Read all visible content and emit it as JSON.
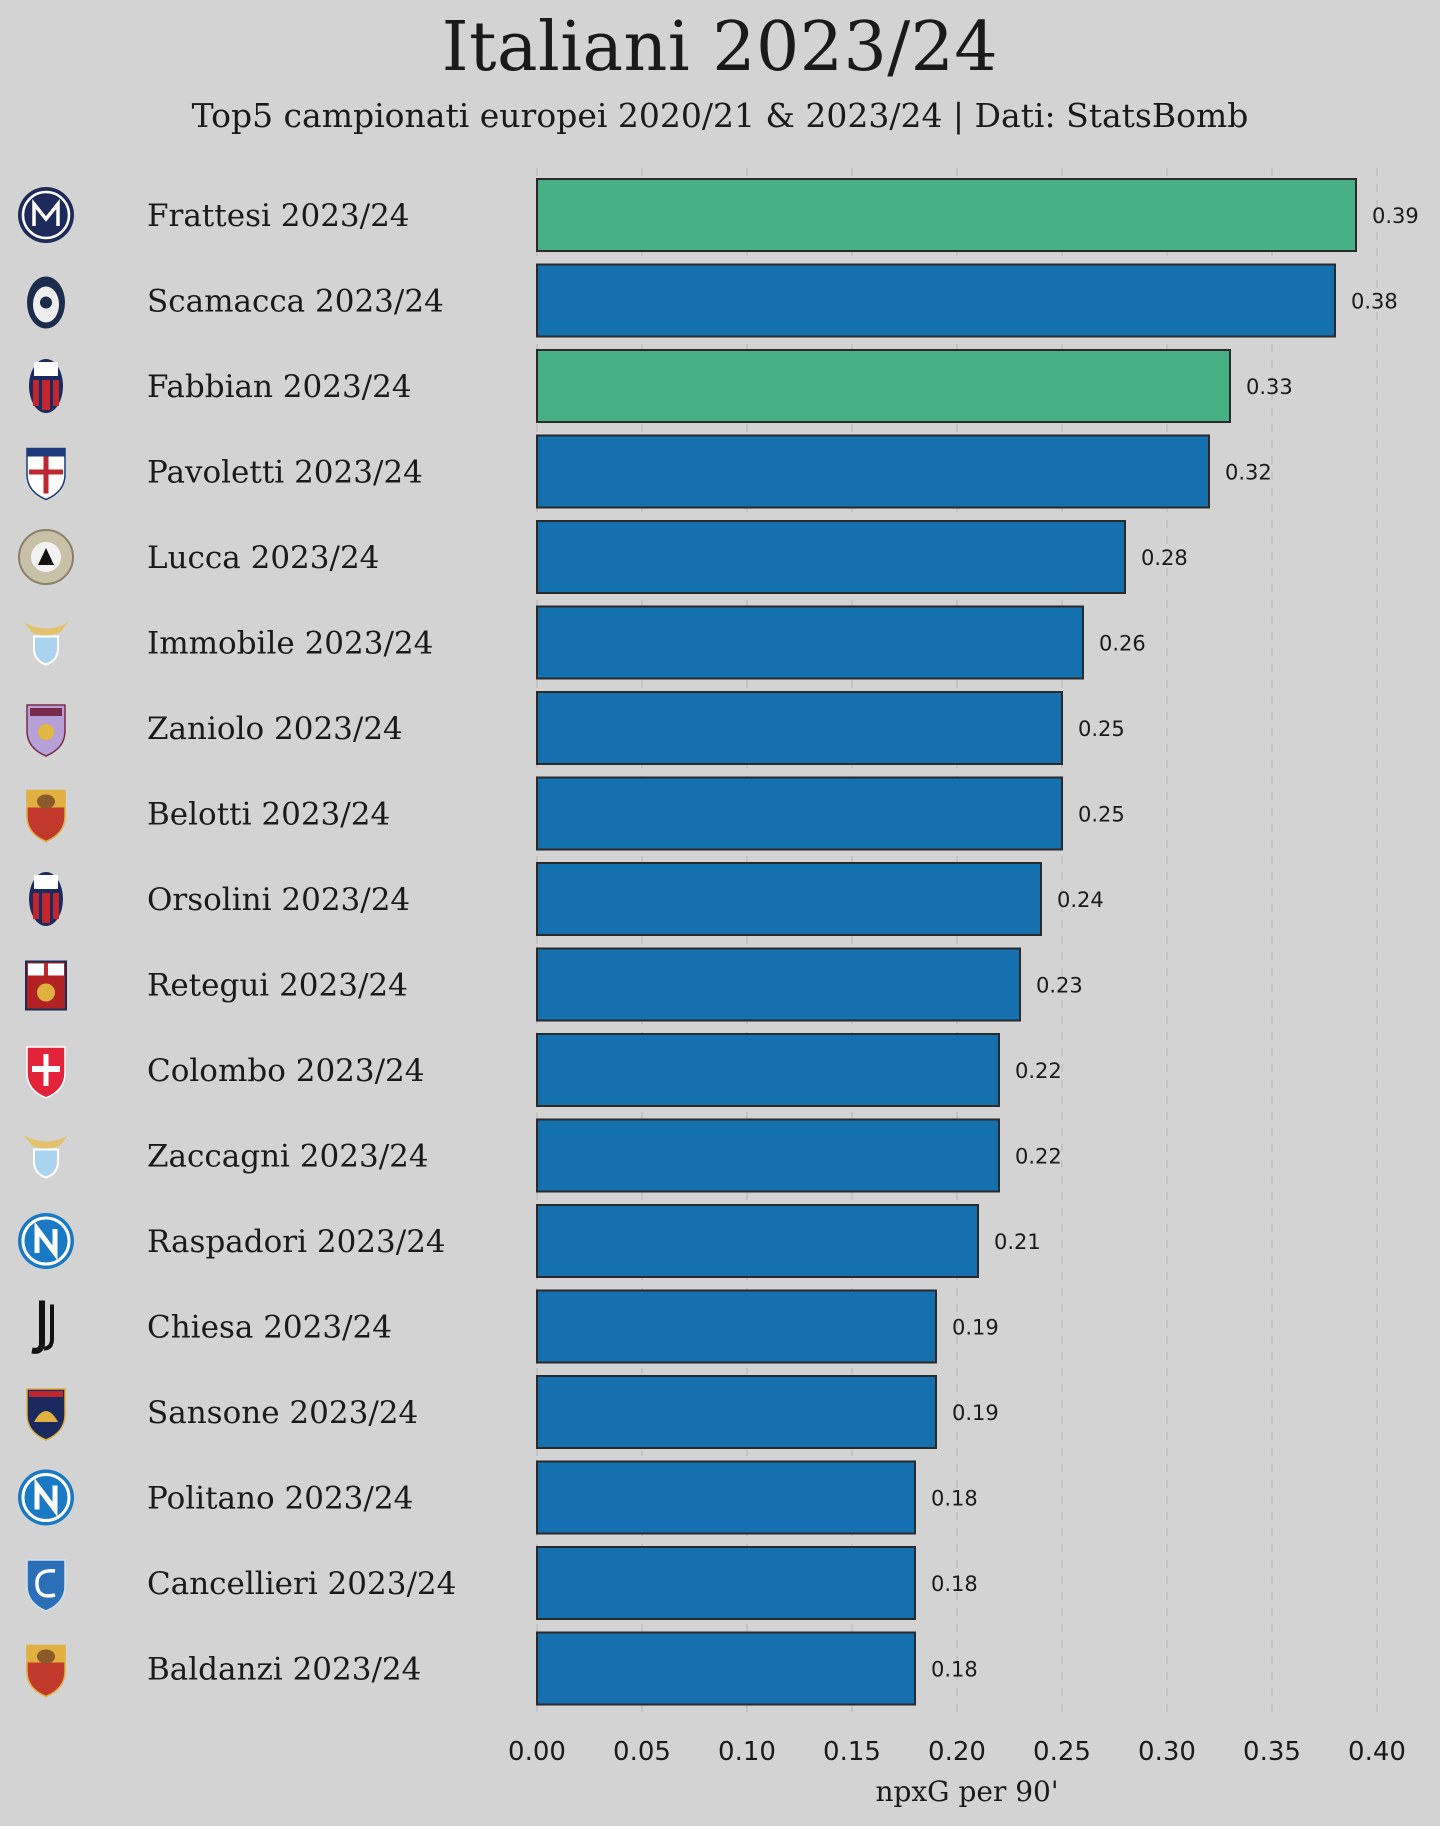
{
  "chart_data": {
    "type": "bar",
    "orientation": "horizontal",
    "title": "Italiani 2023/24",
    "subtitle": "Top5 campionati europei 2020/21 & 2023/24 | Dati: StatsBomb",
    "xlabel": "npxG per 90'",
    "ylabel": "",
    "xlim": [
      0,
      0.4
    ],
    "xticks": [
      "0.00",
      "0.05",
      "0.10",
      "0.15",
      "0.20",
      "0.25",
      "0.30",
      "0.35",
      "0.40"
    ],
    "grid": "vertical dashed",
    "colors": {
      "default": "#1570b0",
      "highlight": "#48b085",
      "edge": "#2a2a2a"
    },
    "bars": [
      {
        "label": "Frattesi 2023/24",
        "value": 0.39,
        "value_label": "0.39",
        "highlight": true,
        "club": "Inter",
        "badge": "inter-badge-icon"
      },
      {
        "label": "Scamacca 2023/24",
        "value": 0.38,
        "value_label": "0.38",
        "highlight": false,
        "club": "Atalanta",
        "badge": "atalanta-badge-icon"
      },
      {
        "label": "Fabbian 2023/24",
        "value": 0.33,
        "value_label": "0.33",
        "highlight": true,
        "club": "Bologna",
        "badge": "bologna-badge-icon"
      },
      {
        "label": "Pavoletti 2023/24",
        "value": 0.32,
        "value_label": "0.32",
        "highlight": false,
        "club": "Cagliari",
        "badge": "cagliari-badge-icon"
      },
      {
        "label": "Lucca 2023/24",
        "value": 0.28,
        "value_label": "0.28",
        "highlight": false,
        "club": "Udinese",
        "badge": "udinese-badge-icon"
      },
      {
        "label": "Immobile 2023/24",
        "value": 0.26,
        "value_label": "0.26",
        "highlight": false,
        "club": "Lazio",
        "badge": "lazio-badge-icon"
      },
      {
        "label": "Zaniolo 2023/24",
        "value": 0.25,
        "value_label": "0.25",
        "highlight": false,
        "club": "Aston Villa",
        "badge": "aston-villa-badge-icon"
      },
      {
        "label": "Belotti 2023/24",
        "value": 0.25,
        "value_label": "0.25",
        "highlight": false,
        "club": "Roma",
        "badge": "roma-badge-icon"
      },
      {
        "label": "Orsolini 2023/24",
        "value": 0.24,
        "value_label": "0.24",
        "highlight": false,
        "club": "Bologna",
        "badge": "bologna-badge-icon"
      },
      {
        "label": "Retegui 2023/24",
        "value": 0.23,
        "value_label": "0.23",
        "highlight": false,
        "club": "Genoa",
        "badge": "genoa-badge-icon"
      },
      {
        "label": "Colombo 2023/24",
        "value": 0.22,
        "value_label": "0.22",
        "highlight": false,
        "club": "Monza",
        "badge": "monza-badge-icon"
      },
      {
        "label": "Zaccagni 2023/24",
        "value": 0.22,
        "value_label": "0.22",
        "highlight": false,
        "club": "Lazio",
        "badge": "lazio-badge-icon"
      },
      {
        "label": "Raspadori 2023/24",
        "value": 0.21,
        "value_label": "0.21",
        "highlight": false,
        "club": "Napoli",
        "badge": "napoli-badge-icon"
      },
      {
        "label": "Chiesa 2023/24",
        "value": 0.19,
        "value_label": "0.19",
        "highlight": false,
        "club": "Juventus",
        "badge": "juventus-badge-icon"
      },
      {
        "label": "Sansone 2023/24",
        "value": 0.19,
        "value_label": "0.19",
        "highlight": false,
        "club": "Lecce",
        "badge": "lecce-badge-icon"
      },
      {
        "label": "Politano 2023/24",
        "value": 0.18,
        "value_label": "0.18",
        "highlight": false,
        "club": "Napoli",
        "badge": "napoli-badge-icon"
      },
      {
        "label": "Cancellieri 2023/24",
        "value": 0.18,
        "value_label": "0.18",
        "highlight": false,
        "club": "Empoli",
        "badge": "empoli-badge-icon"
      },
      {
        "label": "Baldanzi 2023/24",
        "value": 0.18,
        "value_label": "0.18",
        "highlight": false,
        "club": "Roma",
        "badge": "roma-badge-icon"
      }
    ]
  }
}
